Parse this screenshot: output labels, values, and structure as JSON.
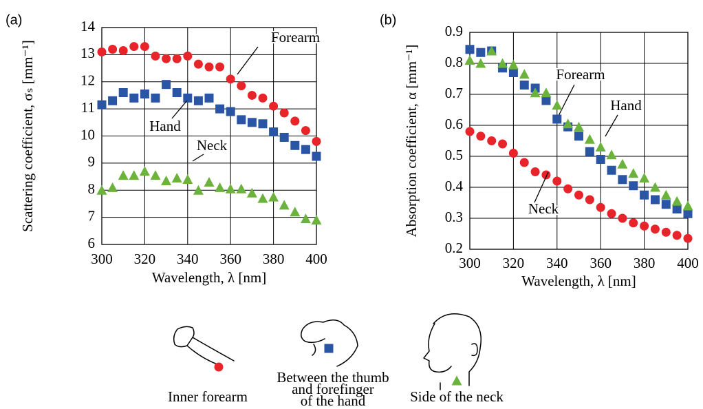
{
  "chart_data": [
    {
      "type": "scatter",
      "panel": "(a)",
      "x_label": "Wavelength, λ [nm]",
      "y_label": "Scattering coefficient, σₛ [mm⁻¹]",
      "xlim": [
        300,
        400
      ],
      "xticks": [
        300,
        320,
        340,
        360,
        380,
        400
      ],
      "ylim": [
        6,
        14
      ],
      "yticks": [
        6,
        7,
        8,
        9,
        10,
        11,
        12,
        13,
        14
      ],
      "grid": true,
      "x": [
        300,
        305,
        310,
        315,
        320,
        325,
        330,
        335,
        340,
        345,
        350,
        355,
        360,
        365,
        370,
        375,
        380,
        385,
        390,
        395,
        400
      ],
      "series": [
        {
          "name": "Forearm",
          "color": "#e8232a",
          "marker": "circle",
          "values": [
            13.1,
            13.2,
            13.15,
            13.3,
            13.3,
            12.95,
            12.85,
            12.85,
            12.95,
            12.65,
            12.55,
            12.55,
            12.1,
            11.85,
            11.5,
            11.4,
            11.1,
            10.85,
            10.55,
            10.2,
            9.8
          ]
        },
        {
          "name": "Hand",
          "color": "#2a55a5",
          "marker": "square",
          "values": [
            11.15,
            11.3,
            11.6,
            11.4,
            11.55,
            11.4,
            11.9,
            11.6,
            11.4,
            11.3,
            11.4,
            11.0,
            10.9,
            10.6,
            10.5,
            10.45,
            10.15,
            9.95,
            9.65,
            9.5,
            9.25
          ]
        },
        {
          "name": "Neck",
          "color": "#6cb33e",
          "marker": "triangle",
          "values": [
            8.0,
            8.1,
            8.55,
            8.55,
            8.7,
            8.55,
            8.35,
            8.45,
            8.4,
            8.0,
            8.3,
            8.1,
            8.05,
            8.05,
            7.9,
            7.7,
            7.75,
            7.45,
            7.2,
            6.95,
            6.9
          ]
        }
      ]
    },
    {
      "type": "scatter",
      "panel": "(b)",
      "x_label": "Wavelength, λ [nm]",
      "y_label": "Absorption coefficient, α [mm⁻¹]",
      "xlim": [
        300,
        400
      ],
      "xticks": [
        300,
        320,
        340,
        360,
        380,
        400
      ],
      "ylim": [
        0.2,
        0.9
      ],
      "yticks": [
        0.2,
        0.3,
        0.4,
        0.5,
        0.6,
        0.7,
        0.8,
        0.9
      ],
      "grid": true,
      "x": [
        300,
        305,
        310,
        315,
        320,
        325,
        330,
        335,
        340,
        345,
        350,
        355,
        360,
        365,
        370,
        375,
        380,
        385,
        390,
        395,
        400
      ],
      "series": [
        {
          "name": "Forearm",
          "color": "#e8232a",
          "marker": "circle",
          "values": [
            0.58,
            0.565,
            0.55,
            0.54,
            0.51,
            0.48,
            0.45,
            0.44,
            0.42,
            0.395,
            0.375,
            0.36,
            0.335,
            0.315,
            0.3,
            0.285,
            0.275,
            0.265,
            0.255,
            0.245,
            0.235
          ]
        },
        {
          "name": "Hand",
          "color": "#2a55a5",
          "marker": "square",
          "values": [
            0.845,
            0.835,
            0.84,
            0.785,
            0.77,
            0.73,
            0.72,
            0.68,
            0.62,
            0.595,
            0.565,
            0.515,
            0.49,
            0.455,
            0.425,
            0.405,
            0.375,
            0.36,
            0.345,
            0.33,
            0.315
          ]
        },
        {
          "name": "Neck",
          "color": "#6cb33e",
          "marker": "triangle",
          "values": [
            0.81,
            0.8,
            0.84,
            0.8,
            0.795,
            0.765,
            0.705,
            0.705,
            0.665,
            0.605,
            0.595,
            0.555,
            0.53,
            0.505,
            0.475,
            0.445,
            0.43,
            0.4,
            0.375,
            0.355,
            0.34
          ]
        }
      ]
    }
  ],
  "legend_items": [
    {
      "lines": [
        "Inner forearm"
      ]
    },
    {
      "lines": [
        "Between the thumb",
        "and forefinger",
        "of the hand"
      ]
    },
    {
      "lines": [
        "Side of the neck"
      ]
    }
  ]
}
